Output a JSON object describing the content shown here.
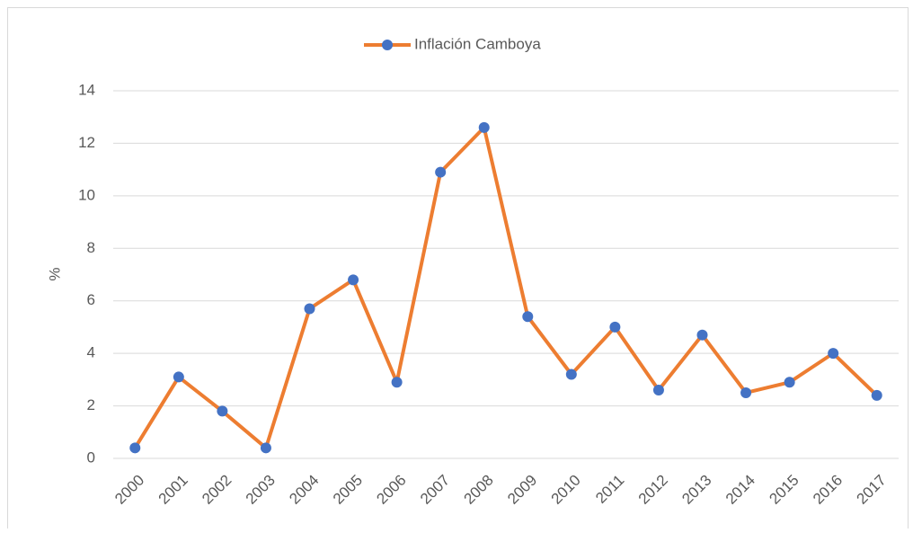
{
  "chart_data": {
    "type": "line",
    "ylabel": "%",
    "categories": [
      "2000",
      "2001",
      "2002",
      "2003",
      "2004",
      "2005",
      "2006",
      "2007",
      "2008",
      "2009",
      "2010",
      "2011",
      "2012",
      "2013",
      "2014",
      "2015",
      "2016",
      "2017"
    ],
    "series": [
      {
        "name": "Inflación Camboya",
        "color": "#ed7d31",
        "marker_color": "#4472c4",
        "values": [
          0.4,
          3.1,
          1.8,
          0.4,
          5.7,
          6.8,
          2.9,
          10.9,
          12.6,
          5.4,
          3.2,
          5.0,
          2.6,
          4.7,
          2.5,
          2.9,
          4.0,
          2.4
        ]
      }
    ],
    "ylim": [
      0,
      14
    ],
    "yticks": [
      0,
      2,
      4,
      6,
      8,
      10,
      12,
      14
    ],
    "grid": true,
    "legend": "top"
  }
}
